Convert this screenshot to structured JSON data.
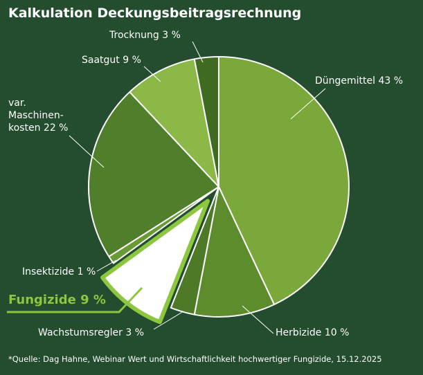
{
  "chart_data": {
    "type": "pie",
    "title": "Kalkulation Deckungsbeitragsrechnung",
    "categories": [
      "Düngemittel",
      "Herbizide",
      "Wachstumsregler",
      "Fungizide",
      "Insektizide",
      "var. Maschinen-kosten",
      "Saatgut",
      "Trocknung"
    ],
    "values": [
      43,
      10,
      3,
      9,
      1,
      22,
      9,
      3
    ],
    "value_labels": [
      "43 %",
      "10 %",
      "3 %",
      "9 %",
      "1 %",
      "22 %",
      "9 %",
      "3 %"
    ],
    "colors": [
      "#7aa83a",
      "#5c8c2c",
      "#4e7a28",
      "#ffffff",
      "#6a9a34",
      "#4f7f2a",
      "#8cb847",
      "#3f6b23"
    ],
    "highlight": "Fungizide",
    "highlight_color": "#8dc63f",
    "source": "*Quelle: Dag Hahne, Webinar Wert und Wirtschaftlichkeit hochwertiger Fungizide, 15.12.2025"
  }
}
